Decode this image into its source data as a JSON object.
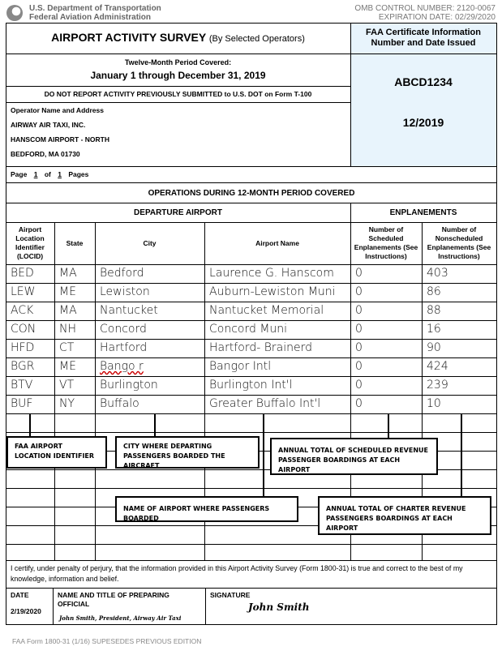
{
  "header": {
    "agency_line1": "U.S. Department of Transportation",
    "agency_line2": "Federal Aviation Administration",
    "omb": "OMB CONTROL NUMBER: 2120-0067",
    "expiration": "EXPIRATION DATE: 02/29/2020",
    "logo": "dot-logo"
  },
  "title": {
    "main": "AIRPORT ACTIVITY SURVEY",
    "sub": "(By Selected Operators)"
  },
  "certificate": {
    "header_line1": "FAA Certificate Information",
    "header_line2": "Number and Date Issued",
    "number": "ABCD1234",
    "date": "12/2019",
    "bg_color": "#e8f4fc"
  },
  "period": {
    "label": "Twelve-Month Period Covered:",
    "value": "January 1 through December 31, 2019"
  },
  "notice": "DO NOT REPORT ACTIVITY PREVIOUSLY SUBMITTED to U.S. DOT on Form T-100",
  "operator": {
    "label": "Operator Name and Address",
    "name": "AIRWAY AIR TAXI, INC.",
    "address1": "HANSCOM AIRPORT - NORTH",
    "address2": "BEDFORD, MA  01730"
  },
  "page": {
    "label_page": "Page",
    "current": "1",
    "label_of": "of",
    "total": "1",
    "label_pages": "Pages"
  },
  "operations_title": "OPERATIONS DURING 12-MONTH PERIOD COVERED",
  "group_headers": {
    "departure": "DEPARTURE AIRPORT",
    "enplanements": "ENPLANEMENTS"
  },
  "columns": [
    "Airport Location Identifier (LOCID)",
    "State",
    "City",
    "Airport Name",
    "Number of Scheduled Enplanements (See Instructions)",
    "Number of Nonscheduled Enplanements (See Instructions)"
  ],
  "rows": [
    [
      "BED",
      "MA",
      "Bedford",
      "Laurence G. Hanscom",
      "0",
      "403"
    ],
    [
      "LEW",
      "ME",
      "Lewiston",
      "Auburn-Lewiston Muni",
      "0",
      "86"
    ],
    [
      "ACK",
      "MA",
      "Nantucket",
      "Nantucket Memorial",
      "0",
      "88"
    ],
    [
      "CON",
      "NH",
      "Concord",
      "Concord Muni",
      "0",
      "16"
    ],
    [
      "HFD",
      "CT",
      "Hartford",
      "Hartford- Brainerd",
      "0",
      "90"
    ],
    [
      "BGR",
      "ME",
      "Bango r",
      "Bangor Intl",
      "0",
      "424"
    ],
    [
      "BTV",
      "VT",
      "Burlington",
      "Burlington Int'l",
      "0",
      "239"
    ],
    [
      "BUF",
      "NY",
      "Buffalo",
      "Greater Buffalo Int'l",
      "0",
      "10"
    ]
  ],
  "callouts": [
    "FAA AIRPORT LOCATION IDENTIFIER",
    "CITY WHERE DEPARTING PASSENGERS BOARDED THE AIRCRAFT",
    "ANNUAL TOTAL OF SCHEDULED REVENUE PASSENGER BOARDINGS AT EACH AIRPORT",
    "NAME OF AIRPORT WHERE PASSENGERS BOARDED",
    "ANNUAL TOTAL OF CHARTER REVENUE PASSENGERS BOARDINGS AT EACH AIRPORT"
  ],
  "certification": "I certify, under penalty of perjury, that the information provided in this Airport Activity Survey (Form 1800-31) is true and correct to the best of my knowledge, information and belief.",
  "footer_fields": {
    "date_label": "DATE",
    "date_value": "2/19/2020",
    "name_label": "NAME AND TITLE OF PREPARING OFFICIAL",
    "name_value": "John Smith, President, Airway Air Taxi",
    "signature_label": "SIGNATURE",
    "signature_value": "John Smith"
  },
  "form_footer": "FAA Form 1800-31 (1/16) SUPESEDES PREVIOUS EDITION"
}
